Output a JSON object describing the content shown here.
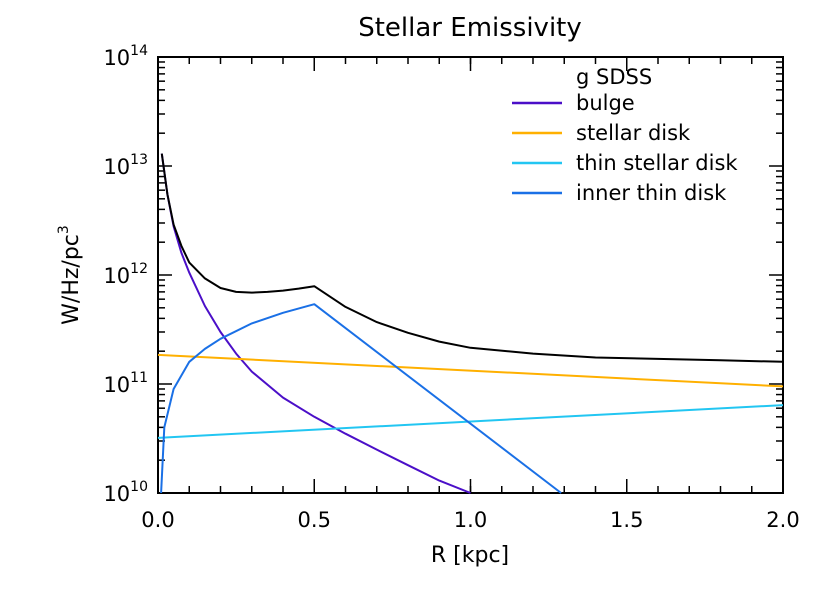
{
  "chart_data": {
    "type": "line",
    "title": "Stellar Emissivity",
    "xlabel": "R [kpc]",
    "ylabel": "W/Hz/pc",
    "ylabel_sup": "3",
    "xlim": [
      0.0,
      2.0
    ],
    "ylim": [
      10000000000.0,
      100000000000000.0
    ],
    "yscale": "log",
    "x_ticks": [
      {
        "value": 0.0,
        "label": "0.0"
      },
      {
        "value": 0.5,
        "label": "0.5"
      },
      {
        "value": 1.0,
        "label": "1.0"
      },
      {
        "value": 1.5,
        "label": "1.5"
      },
      {
        "value": 2.0,
        "label": "2.0"
      }
    ],
    "y_ticks": [
      {
        "exp": 10,
        "base": "10",
        "sup": "10"
      },
      {
        "exp": 11,
        "base": "10",
        "sup": "11"
      },
      {
        "exp": 12,
        "base": "10",
        "sup": "12"
      },
      {
        "exp": 13,
        "base": "10",
        "sup": "13"
      },
      {
        "exp": 14,
        "base": "10",
        "sup": "14"
      }
    ],
    "legend_title": "g SDSS",
    "legend_position": "top-right",
    "series": [
      {
        "name": "bulge",
        "color": "#4b0fc8",
        "in_legend": true,
        "x": [
          0.012,
          0.03,
          0.05,
          0.075,
          0.1,
          0.15,
          0.2,
          0.25,
          0.3,
          0.4,
          0.5,
          0.6,
          0.7,
          0.8,
          0.9,
          1.0
        ],
        "y": [
          13000000000000.0,
          5500000000000.0,
          2800000000000.0,
          1600000000000.0,
          1050000000000.0,
          520000000000.0,
          300000000000.0,
          190000000000.0,
          130000000000.0,
          75000000000.0,
          50000000000.0,
          35000000000.0,
          25000000000.0,
          18000000000.0,
          13000000000.0,
          10000000000.0
        ]
      },
      {
        "name": "stellar disk",
        "color": "#ffb000",
        "in_legend": true,
        "x": [
          0.0,
          2.0
        ],
        "y": [
          185000000000.0,
          95000000000.0
        ]
      },
      {
        "name": "thin stellar disk",
        "color": "#22c6f2",
        "in_legend": true,
        "x": [
          0.0,
          2.0
        ],
        "y": [
          32000000000.0,
          64000000000.0
        ]
      },
      {
        "name": "inner thin disk",
        "color": "#1a70e6",
        "in_legend": true,
        "x": [
          0.01,
          0.02,
          0.05,
          0.1,
          0.15,
          0.2,
          0.3,
          0.4,
          0.5,
          1.29
        ],
        "y": [
          10000000000.0,
          40000000000.0,
          90000000000.0,
          160000000000.0,
          210000000000.0,
          260000000000.0,
          360000000000.0,
          450000000000.0,
          540000000000.0,
          10000000000.0
        ]
      },
      {
        "name": "total",
        "color": "#000000",
        "in_legend": false,
        "x": [
          0.012,
          0.03,
          0.05,
          0.075,
          0.1,
          0.15,
          0.2,
          0.25,
          0.3,
          0.35,
          0.4,
          0.45,
          0.5,
          0.6,
          0.7,
          0.8,
          0.9,
          1.0,
          1.2,
          1.4,
          1.6,
          1.8,
          2.0
        ],
        "y": [
          13000000000000.0,
          5500000000000.0,
          2900000000000.0,
          1850000000000.0,
          1300000000000.0,
          930000000000.0,
          760000000000.0,
          700000000000.0,
          690000000000.0,
          700000000000.0,
          720000000000.0,
          750000000000.0,
          790000000000.0,
          510000000000.0,
          370000000000.0,
          295000000000.0,
          245000000000.0,
          215000000000.0,
          190000000000.0,
          175000000000.0,
          170000000000.0,
          165000000000.0,
          160000000000.0
        ]
      }
    ]
  }
}
